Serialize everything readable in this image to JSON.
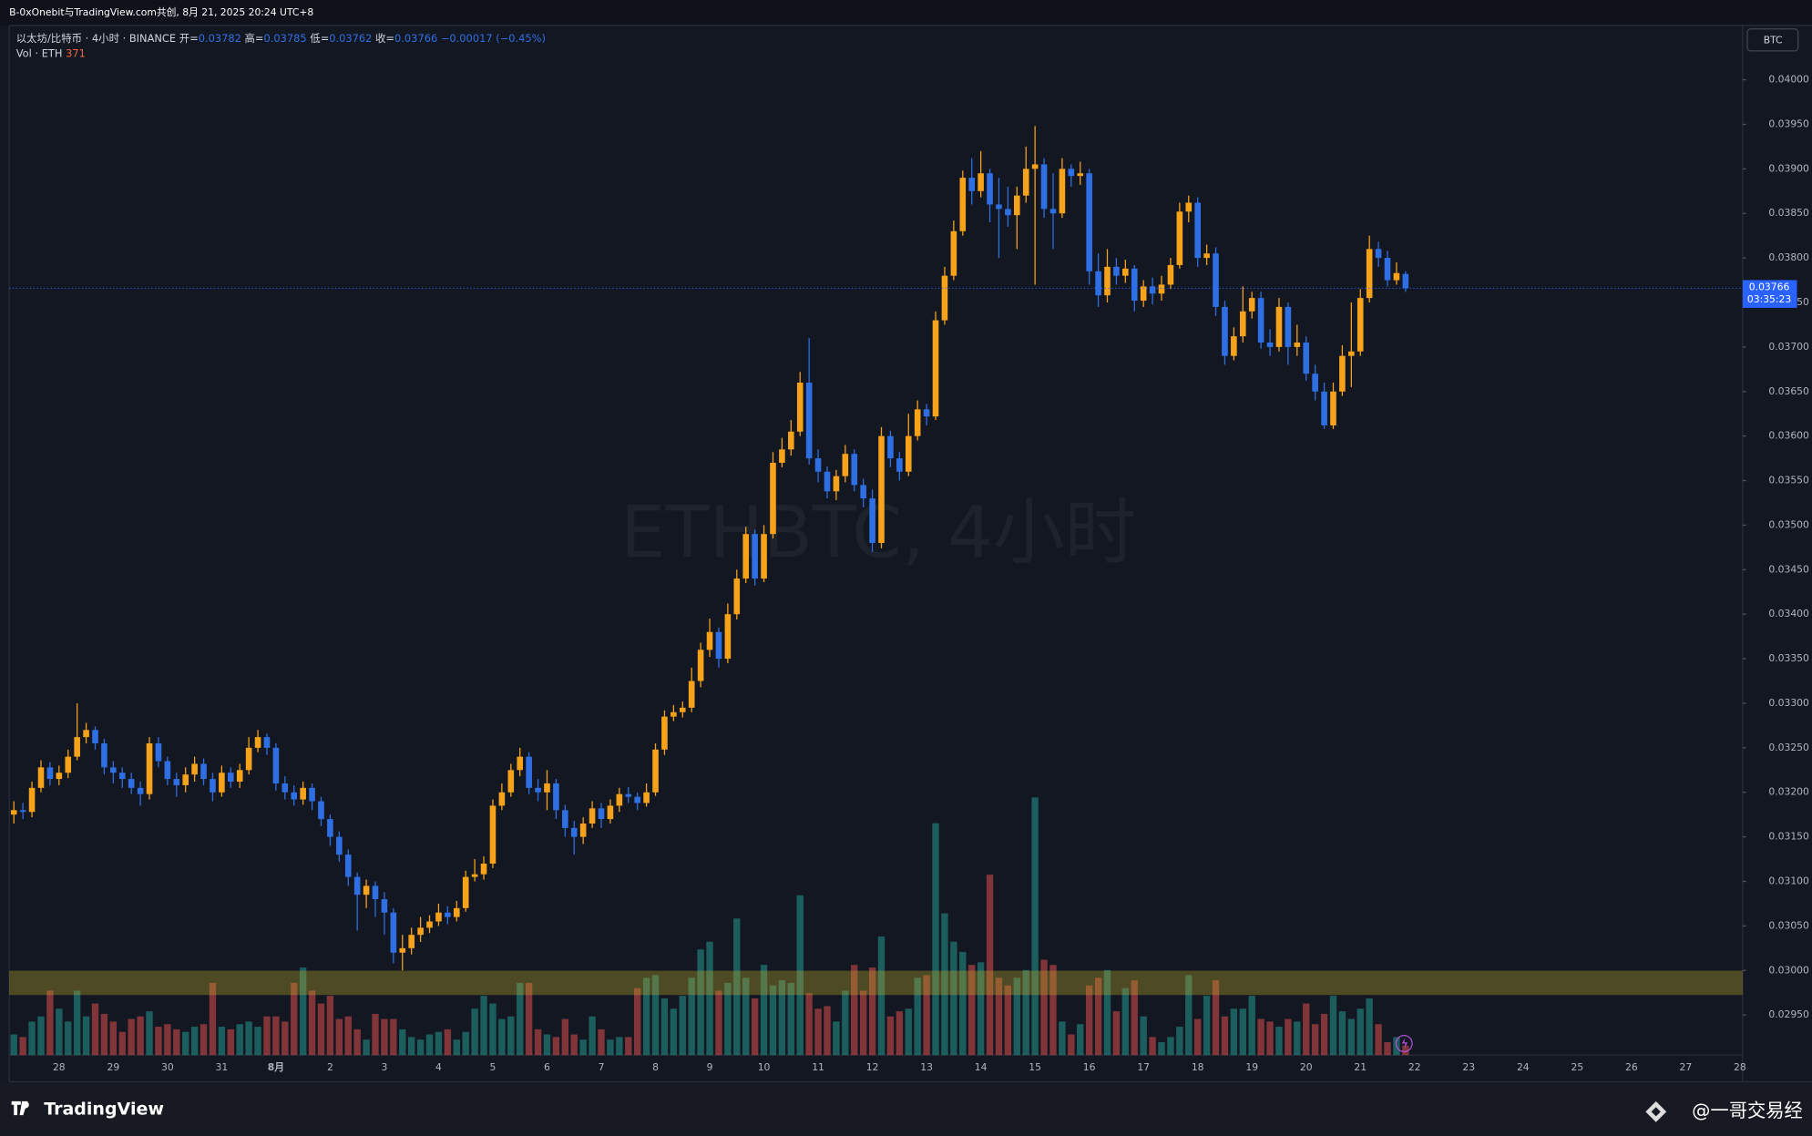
{
  "header": {
    "caption": "B-0xOnebit与TradingView.com共创, 8月 21, 2025 20:24 UTC+8",
    "currency": "BTC",
    "logo": "TradingView",
    "credit": "@一哥交易经"
  },
  "chart_data": {
    "type": "candlestick",
    "symbol": "以太坊/比特币 · 4小时 · BINANCE",
    "ohlc_labels": [
      "开=",
      "高=",
      "低=",
      "收="
    ],
    "change": "−0.00017 (−0.45%)",
    "volume_label": "Vol · ETH",
    "watermark": "ETHBTC, 4小时",
    "countdown": "03:35:23",
    "up_color": "#f7a21b",
    "down_color": "#2f6fe4",
    "volume_up_color": "rgba(38,166,154,0.5)",
    "volume_down_color": "rgba(239,83,80,0.5)",
    "ylim": [
      0.02905,
      0.04061
    ],
    "yticks": [
      {
        "value": 0.04,
        "label": "0.04000"
      },
      {
        "value": 0.0395,
        "label": "0.03950"
      },
      {
        "value": 0.039,
        "label": "0.03900"
      },
      {
        "value": 0.0385,
        "label": "0.03850"
      },
      {
        "value": 0.038,
        "label": "0.03800"
      },
      {
        "value": 0.0375,
        "label": "0.03750"
      },
      {
        "value": 0.037,
        "label": "0.03700"
      },
      {
        "value": 0.0365,
        "label": "0.03650"
      },
      {
        "value": 0.036,
        "label": "0.03600"
      },
      {
        "value": 0.0355,
        "label": "0.03550"
      },
      {
        "value": 0.035,
        "label": "0.03500"
      },
      {
        "value": 0.0345,
        "label": "0.03450"
      },
      {
        "value": 0.034,
        "label": "0.03400"
      },
      {
        "value": 0.0335,
        "label": "0.03350"
      },
      {
        "value": 0.033,
        "label": "0.03300"
      },
      {
        "value": 0.0325,
        "label": "0.03250"
      },
      {
        "value": 0.032,
        "label": "0.03200"
      },
      {
        "value": 0.0315,
        "label": "0.03150"
      },
      {
        "value": 0.031,
        "label": "0.03100"
      },
      {
        "value": 0.0305,
        "label": "0.03050"
      },
      {
        "value": 0.03,
        "label": "0.03000"
      },
      {
        "value": 0.0295,
        "label": "0.02950"
      }
    ],
    "x_labels": [
      "28",
      "29",
      "30",
      "31",
      "8月",
      "2",
      "3",
      "4",
      "5",
      "6",
      "7",
      "8",
      "9",
      "10",
      "11",
      "12",
      "13",
      "14",
      "15",
      "16",
      "17",
      "18",
      "19",
      "20",
      "21",
      "22",
      "23",
      "24",
      "25",
      "26",
      "27",
      "28"
    ],
    "open": [
      0.03175,
      0.0318,
      0.03178,
      0.03205,
      0.03228,
      0.03215,
      0.03222,
      0.0324,
      0.03262,
      0.0327,
      0.03255,
      0.03228,
      0.03222,
      0.03215,
      0.03205,
      0.03198,
      0.03255,
      0.03235,
      0.03215,
      0.03208,
      0.0322,
      0.03232,
      0.03215,
      0.032,
      0.03222,
      0.03212,
      0.03225,
      0.0325,
      0.03262,
      0.0325,
      0.0321,
      0.032,
      0.03192,
      0.03205,
      0.0319,
      0.0317,
      0.0315,
      0.0313,
      0.03105,
      0.03085,
      0.03095,
      0.0308,
      0.03065,
      0.0302,
      0.03025,
      0.0304,
      0.03048,
      0.03055,
      0.03065,
      0.0306,
      0.0307,
      0.03105,
      0.03108,
      0.0312,
      0.03185,
      0.032,
      0.03225,
      0.0324,
      0.03205,
      0.032,
      0.0321,
      0.0318,
      0.0316,
      0.0315,
      0.03165,
      0.03182,
      0.0317,
      0.03185,
      0.03198,
      0.03195,
      0.03188,
      0.032,
      0.03248,
      0.03285,
      0.0329,
      0.03295,
      0.03325,
      0.0336,
      0.0338,
      0.0335,
      0.034,
      0.0344,
      0.0349,
      0.0344,
      0.0349,
      0.0357,
      0.03585,
      0.03605,
      0.0366,
      0.03575,
      0.0356,
      0.03538,
      0.03555,
      0.0358,
      0.03545,
      0.0353,
      0.0348,
      0.036,
      0.03575,
      0.0356,
      0.036,
      0.0363,
      0.03622,
      0.0373,
      0.0378,
      0.0383,
      0.0389,
      0.03875,
      0.03895,
      0.0386,
      0.03855,
      0.03848,
      0.0387,
      0.039,
      0.03905,
      0.03855,
      0.0385,
      0.039,
      0.03892,
      0.03895,
      0.03785,
      0.03758,
      0.0379,
      0.0378,
      0.03788,
      0.03752,
      0.03768,
      0.0376,
      0.0377,
      0.03792,
      0.03852,
      0.03862,
      0.038,
      0.03805,
      0.03745,
      0.0369,
      0.03712,
      0.0374,
      0.03755,
      0.03705,
      0.037,
      0.03745,
      0.037,
      0.03705,
      0.0367,
      0.0365,
      0.03612,
      0.0365,
      0.0369,
      0.03695,
      0.03755,
      0.0381,
      0.038,
      0.03775,
      0.03782
    ],
    "high": [
      0.0319,
      0.03188,
      0.03212,
      0.03236,
      0.03234,
      0.0323,
      0.03248,
      0.033,
      0.03278,
      0.03274,
      0.0326,
      0.03235,
      0.03228,
      0.03222,
      0.03212,
      0.03262,
      0.03262,
      0.0324,
      0.03222,
      0.03228,
      0.0324,
      0.03238,
      0.03222,
      0.0323,
      0.03228,
      0.03232,
      0.03262,
      0.0327,
      0.03266,
      0.03255,
      0.03218,
      0.03208,
      0.03212,
      0.0321,
      0.03195,
      0.03175,
      0.03156,
      0.03136,
      0.0311,
      0.03102,
      0.031,
      0.03088,
      0.0307,
      0.0304,
      0.03048,
      0.0306,
      0.03062,
      0.03075,
      0.03072,
      0.03078,
      0.03112,
      0.03125,
      0.03128,
      0.03192,
      0.0321,
      0.03232,
      0.0325,
      0.03245,
      0.03215,
      0.03225,
      0.03215,
      0.03186,
      0.03168,
      0.03172,
      0.0319,
      0.03188,
      0.03192,
      0.03205,
      0.03206,
      0.032,
      0.0321,
      0.03255,
      0.03292,
      0.03298,
      0.03302,
      0.0334,
      0.03368,
      0.03395,
      0.03385,
      0.03412,
      0.0345,
      0.03498,
      0.03495,
      0.035,
      0.03582,
      0.03598,
      0.03618,
      0.03672,
      0.0371,
      0.03585,
      0.03566,
      0.03562,
      0.0359,
      0.03585,
      0.03552,
      0.0354,
      0.0361,
      0.03606,
      0.03582,
      0.03625,
      0.0364,
      0.03636,
      0.0374,
      0.0379,
      0.03842,
      0.03898,
      0.03912,
      0.0392,
      0.039,
      0.0389,
      0.0388,
      0.0388,
      0.03925,
      0.03948,
      0.03912,
      0.03895,
      0.03912,
      0.03905,
      0.03908,
      0.039,
      0.03805,
      0.0381,
      0.038,
      0.03798,
      0.03792,
      0.03775,
      0.03778,
      0.0378,
      0.038,
      0.03862,
      0.0387,
      0.03868,
      0.03815,
      0.03812,
      0.03752,
      0.03722,
      0.03768,
      0.03762,
      0.03762,
      0.0372,
      0.03755,
      0.0375,
      0.03725,
      0.03712,
      0.0368,
      0.0366,
      0.0366,
      0.03702,
      0.0375,
      0.03765,
      0.03825,
      0.03818,
      0.03808,
      0.03795,
      0.03785
    ],
    "low": [
      0.03165,
      0.0317,
      0.03172,
      0.032,
      0.03208,
      0.03208,
      0.03216,
      0.03236,
      0.03255,
      0.03248,
      0.0322,
      0.0321,
      0.03205,
      0.03198,
      0.03185,
      0.03192,
      0.03228,
      0.03208,
      0.03195,
      0.032,
      0.03212,
      0.03208,
      0.0319,
      0.03195,
      0.03205,
      0.03205,
      0.0322,
      0.03245,
      0.03242,
      0.03202,
      0.03192,
      0.03185,
      0.03186,
      0.0318,
      0.03162,
      0.0314,
      0.03122,
      0.03095,
      0.03045,
      0.0307,
      0.0306,
      0.0304,
      0.03008,
      0.03,
      0.03018,
      0.03032,
      0.03042,
      0.0305,
      0.03052,
      0.03055,
      0.03066,
      0.031,
      0.03102,
      0.03115,
      0.0318,
      0.03195,
      0.03218,
      0.03198,
      0.0319,
      0.0318,
      0.0317,
      0.0315,
      0.0313,
      0.03142,
      0.0316,
      0.0316,
      0.03165,
      0.03178,
      0.03188,
      0.0318,
      0.03184,
      0.03196,
      0.03242,
      0.0328,
      0.03284,
      0.0329,
      0.03318,
      0.03352,
      0.0334,
      0.03345,
      0.03394,
      0.03435,
      0.03432,
      0.03436,
      0.03485,
      0.03565,
      0.03578,
      0.036,
      0.03568,
      0.03548,
      0.0353,
      0.03528,
      0.03548,
      0.03538,
      0.0352,
      0.0347,
      0.03474,
      0.03565,
      0.0355,
      0.03555,
      0.03595,
      0.03612,
      0.03618,
      0.03725,
      0.03775,
      0.03825,
      0.0386,
      0.03868,
      0.0384,
      0.038,
      0.03835,
      0.0381,
      0.03862,
      0.0377,
      0.03845,
      0.0381,
      0.03845,
      0.0388,
      0.03882,
      0.0377,
      0.03745,
      0.0375,
      0.0377,
      0.03772,
      0.0374,
      0.03745,
      0.03748,
      0.03752,
      0.03765,
      0.03788,
      0.0384,
      0.0379,
      0.03792,
      0.03735,
      0.0368,
      0.03685,
      0.03705,
      0.03732,
      0.03698,
      0.0369,
      0.03695,
      0.0368,
      0.0369,
      0.03662,
      0.0364,
      0.03608,
      0.03608,
      0.03645,
      0.03655,
      0.0369,
      0.0375,
      0.0379,
      0.03768,
      0.0377,
      0.03762
    ],
    "close": [
      0.0318,
      0.03178,
      0.03205,
      0.03228,
      0.03215,
      0.03222,
      0.0324,
      0.03262,
      0.0327,
      0.03255,
      0.03228,
      0.03222,
      0.03215,
      0.03205,
      0.03198,
      0.03255,
      0.03235,
      0.03215,
      0.03208,
      0.0322,
      0.03232,
      0.03215,
      0.032,
      0.03222,
      0.03212,
      0.03225,
      0.0325,
      0.03262,
      0.0325,
      0.0321,
      0.032,
      0.03192,
      0.03205,
      0.0319,
      0.0317,
      0.0315,
      0.0313,
      0.03105,
      0.03085,
      0.03095,
      0.0308,
      0.03065,
      0.0302,
      0.03025,
      0.0304,
      0.03048,
      0.03055,
      0.03065,
      0.0306,
      0.0307,
      0.03105,
      0.03108,
      0.0312,
      0.03185,
      0.032,
      0.03225,
      0.0324,
      0.03205,
      0.032,
      0.0321,
      0.0318,
      0.0316,
      0.0315,
      0.03165,
      0.03182,
      0.0317,
      0.03185,
      0.03198,
      0.03195,
      0.03188,
      0.032,
      0.03248,
      0.03285,
      0.0329,
      0.03295,
      0.03325,
      0.0336,
      0.0338,
      0.0335,
      0.034,
      0.0344,
      0.0349,
      0.0344,
      0.0349,
      0.0357,
      0.03585,
      0.03605,
      0.0366,
      0.03575,
      0.0356,
      0.03538,
      0.03555,
      0.0358,
      0.03545,
      0.0353,
      0.0348,
      0.036,
      0.03575,
      0.0356,
      0.036,
      0.0363,
      0.03622,
      0.0373,
      0.0378,
      0.0383,
      0.0389,
      0.03875,
      0.03895,
      0.0386,
      0.03855,
      0.03848,
      0.0387,
      0.039,
      0.03905,
      0.03855,
      0.0385,
      0.039,
      0.03892,
      0.03895,
      0.03785,
      0.03758,
      0.0379,
      0.0378,
      0.03788,
      0.03752,
      0.03768,
      0.0376,
      0.0377,
      0.03792,
      0.03852,
      0.03862,
      0.038,
      0.03805,
      0.03745,
      0.0369,
      0.03712,
      0.0374,
      0.03755,
      0.03705,
      0.037,
      0.03745,
      0.037,
      0.03705,
      0.0367,
      0.0365,
      0.03612,
      0.0365,
      0.0369,
      0.03695,
      0.03755,
      0.0381,
      0.038,
      0.03775,
      0.03783,
      0.03766
    ],
    "volume": [
      800,
      700,
      1300,
      1500,
      2500,
      1800,
      1300,
      2500,
      1500,
      2000,
      1600,
      1300,
      900,
      1400,
      1500,
      1700,
      1100,
      1200,
      1000,
      900,
      1100,
      1200,
      2800,
      1100,
      1000,
      1200,
      1300,
      1100,
      1500,
      1500,
      1300,
      2800,
      3400,
      2500,
      2000,
      2300,
      1400,
      1500,
      1000,
      600,
      1600,
      1400,
      1400,
      1000,
      700,
      600,
      800,
      900,
      1000,
      600,
      900,
      1800,
      2300,
      2000,
      1400,
      1500,
      2800,
      2800,
      1000,
      800,
      700,
      1400,
      800,
      600,
      1500,
      1000,
      600,
      700,
      700,
      2600,
      3000,
      3100,
      2200,
      1800,
      2300,
      3000,
      4100,
      4400,
      2500,
      2800,
      5300,
      3000,
      2200,
      3500,
      2700,
      2900,
      2800,
      6200,
      2400,
      1800,
      1900,
      1300,
      2500,
      3500,
      2500,
      3400,
      4600,
      1500,
      1700,
      1800,
      3000,
      3100,
      9000,
      5500,
      4400,
      4000,
      3500,
      3600,
      7000,
      3000,
      2700,
      3000,
      3300,
      10000,
      3700,
      3500,
      1300,
      800,
      1200,
      2700,
      3000,
      3300,
      1700,
      2600,
      2900,
      1500,
      700,
      500,
      700,
      1100,
      3100,
      1400,
      2300,
      2900,
      1500,
      1800,
      1800,
      2300,
      1400,
      1300,
      1100,
      1400,
      1300,
      2000,
      1200,
      1600,
      2300,
      1700,
      1400,
      1800,
      2200,
      1200,
      500,
      700,
      371
    ]
  }
}
